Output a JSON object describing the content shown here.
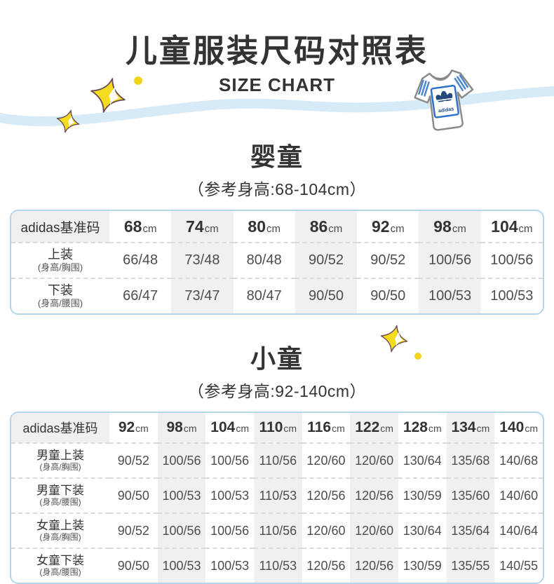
{
  "page": {
    "title": "儿童服装尺码对照表",
    "subtitle": "SIZE CHART"
  },
  "decorations": {
    "tshirt_logo": "adidas"
  },
  "colors": {
    "table_border": "#b3d5e8",
    "column_shade": "#f0f0f0",
    "wave_blue": "#d6eaf7",
    "sparkle_yellow": "#f5dc1e",
    "tshirt_stripe_blue": "#4a86d2",
    "logo_box_blue": "#2e6fc9",
    "trefoil_navy": "#23487e",
    "text_dark": "#363636"
  },
  "sections": [
    {
      "heading": "婴童",
      "subheading": "（参考身高:68-104cm）",
      "table": {
        "corner_label": "adidas基准码",
        "unit": "cm",
        "columns": [
          "68",
          "74",
          "80",
          "86",
          "92",
          "98",
          "104"
        ],
        "rows": [
          {
            "label": "上装",
            "sublabel": "(身高/胸围)",
            "values": [
              "66/48",
              "73/48",
              "80/48",
              "90/52",
              "90/52",
              "100/56",
              "100/56"
            ]
          },
          {
            "label": "下装",
            "sublabel": "(身高/腰围)",
            "values": [
              "66/47",
              "73/47",
              "80/47",
              "90/50",
              "90/50",
              "100/53",
              "100/53"
            ]
          }
        ]
      }
    },
    {
      "heading": "小童",
      "subheading": "（参考身高:92-140cm）",
      "table": {
        "corner_label": "adidas基准码",
        "unit": "cm",
        "columns": [
          "92",
          "98",
          "104",
          "110",
          "116",
          "122",
          "128",
          "134",
          "140"
        ],
        "rows": [
          {
            "label": "男童上装",
            "sublabel": "(身高/胸围)",
            "values": [
              "90/52",
              "100/56",
              "100/56",
              "110/56",
              "120/60",
              "120/60",
              "130/64",
              "135/68",
              "140/68"
            ]
          },
          {
            "label": "男童下装",
            "sublabel": "(身高/腰围)",
            "values": [
              "90/50",
              "100/53",
              "100/53",
              "110/53",
              "120/56",
              "120/56",
              "130/59",
              "135/60",
              "140/60"
            ]
          },
          {
            "label": "女童上装",
            "sublabel": "(身高/胸围)",
            "values": [
              "90/52",
              "100/56",
              "100/56",
              "110/56",
              "120/60",
              "120/60",
              "130/64",
              "135/64",
              "140/64"
            ]
          },
          {
            "label": "女童下装",
            "sublabel": "(身高/腰围)",
            "values": [
              "90/50",
              "100/53",
              "100/53",
              "110/53",
              "120/56",
              "120/56",
              "130/59",
              "135/55",
              "140/55"
            ]
          }
        ]
      }
    }
  ]
}
